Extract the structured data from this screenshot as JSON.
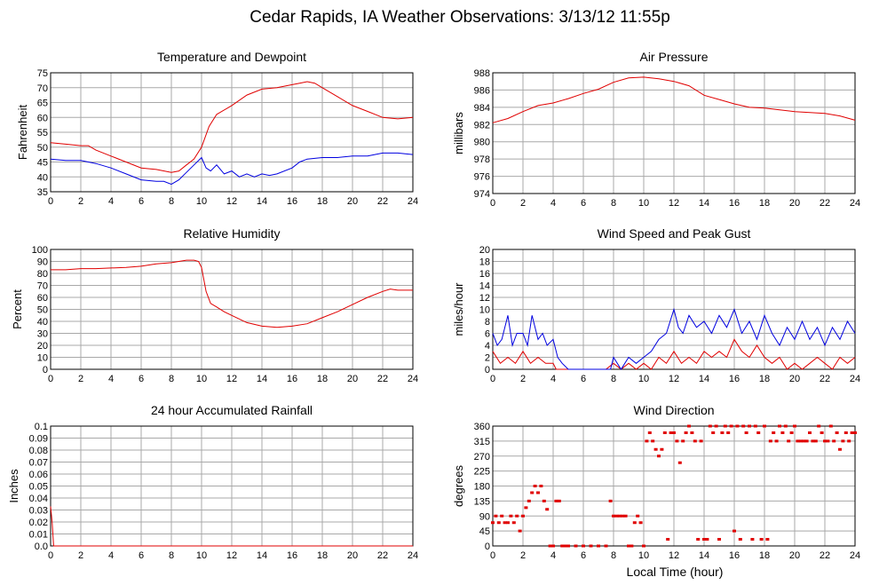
{
  "page_title": "Cedar Rapids, IA Weather Observations: 3/13/12 11:55p",
  "x_axis_label": "Local Time (hour)",
  "colors": {
    "red": "#e00000",
    "blue": "#0000e0",
    "grid": "#a8a8a8"
  },
  "chart_data": [
    {
      "id": "temp",
      "type": "line",
      "title": "Temperature and Dewpoint",
      "ylabel": "Fahrenheit",
      "xlim": [
        0,
        24
      ],
      "ylim": [
        35,
        75
      ],
      "xticks": [
        0,
        2,
        4,
        6,
        8,
        10,
        12,
        14,
        16,
        18,
        20,
        22,
        24
      ],
      "yticks": [
        35,
        40,
        45,
        50,
        55,
        60,
        65,
        70,
        75
      ],
      "grid": true,
      "series": [
        {
          "color": "red",
          "x": [
            0,
            1,
            2,
            2.5,
            3,
            4,
            5,
            6,
            7,
            8,
            8.5,
            9,
            9.5,
            10,
            10.5,
            11,
            12,
            13,
            14,
            15,
            16,
            16.5,
            17,
            17.5,
            18,
            19,
            20,
            21,
            22,
            23,
            24
          ],
          "y": [
            51.5,
            51,
            50.5,
            50.5,
            49,
            47,
            45,
            43,
            42.5,
            41.5,
            42,
            44,
            46,
            50,
            57,
            61,
            64,
            67.5,
            69.5,
            70,
            71,
            71.5,
            72,
            71.5,
            70,
            67,
            64,
            62,
            60,
            59.5,
            60
          ]
        },
        {
          "color": "blue",
          "x": [
            0,
            1,
            2,
            3,
            4,
            5,
            6,
            7,
            7.5,
            8,
            8.5,
            9,
            9.5,
            10,
            10.3,
            10.6,
            11,
            11.5,
            12,
            12.5,
            13,
            13.5,
            14,
            14.5,
            15,
            16,
            16.5,
            17,
            18,
            19,
            20,
            21,
            22,
            23,
            24
          ],
          "y": [
            46,
            45.5,
            45.5,
            44.5,
            43,
            41,
            39,
            38.5,
            38.5,
            37.5,
            39,
            41.5,
            44,
            46.5,
            43,
            42,
            44,
            41,
            42,
            40,
            41,
            40,
            41,
            40.5,
            41,
            43,
            45,
            46,
            46.5,
            46.5,
            47,
            47,
            48,
            48,
            47.5
          ]
        }
      ]
    },
    {
      "id": "pressure",
      "type": "line",
      "title": "Air Pressure",
      "ylabel": "millibars",
      "xlim": [
        0,
        24
      ],
      "ylim": [
        974,
        988
      ],
      "xticks": [
        0,
        2,
        4,
        6,
        8,
        10,
        12,
        14,
        16,
        18,
        20,
        22,
        24
      ],
      "yticks": [
        974,
        976,
        978,
        980,
        982,
        984,
        986,
        988
      ],
      "grid": true,
      "series": [
        {
          "color": "red",
          "x": [
            0,
            1,
            2,
            3,
            4,
            5,
            6,
            7,
            8,
            9,
            10,
            11,
            12,
            13,
            14,
            15,
            16,
            17,
            18,
            19,
            20,
            21,
            22,
            23,
            24
          ],
          "y": [
            982.2,
            982.7,
            983.5,
            984.2,
            984.5,
            985,
            985.6,
            986.1,
            986.9,
            987.4,
            987.5,
            987.3,
            987,
            986.5,
            985.4,
            984.9,
            984.4,
            984,
            983.9,
            983.7,
            983.5,
            983.4,
            983.3,
            983,
            982.5
          ]
        }
      ]
    },
    {
      "id": "humidity",
      "type": "line",
      "title": "Relative Humidity",
      "ylabel": "Percent",
      "xlim": [
        0,
        24
      ],
      "ylim": [
        0,
        100
      ],
      "xticks": [
        0,
        2,
        4,
        6,
        8,
        10,
        12,
        14,
        16,
        18,
        20,
        22,
        24
      ],
      "yticks": [
        0,
        10,
        20,
        30,
        40,
        50,
        60,
        70,
        80,
        90,
        100
      ],
      "grid": true,
      "series": [
        {
          "color": "red",
          "x": [
            0,
            1,
            2,
            3,
            4,
            5,
            6,
            7,
            8,
            8.5,
            9,
            9.5,
            9.8,
            10,
            10.3,
            10.6,
            11,
            11.5,
            12,
            13,
            14,
            15,
            16,
            17,
            18,
            19,
            20,
            21,
            22,
            22.5,
            23,
            24
          ],
          "y": [
            83,
            83,
            84,
            84,
            84.5,
            85,
            86,
            88,
            89,
            90,
            91,
            91,
            90,
            85,
            65,
            55,
            52,
            48,
            45,
            39,
            36,
            35,
            36,
            38,
            43,
            48,
            54,
            60,
            65,
            67,
            66,
            66
          ]
        }
      ]
    },
    {
      "id": "wind",
      "type": "line",
      "title": "Wind Speed and Peak Gust",
      "ylabel": "miles/hour",
      "xlim": [
        0,
        24
      ],
      "ylim": [
        0,
        20
      ],
      "xticks": [
        0,
        2,
        4,
        6,
        8,
        10,
        12,
        14,
        16,
        18,
        20,
        22,
        24
      ],
      "yticks": [
        0,
        2,
        4,
        6,
        8,
        10,
        12,
        14,
        16,
        18,
        20
      ],
      "grid": true,
      "series": [
        {
          "color": "red",
          "x": [
            0,
            0.5,
            1,
            1.5,
            2,
            2.5,
            3,
            3.5,
            4,
            4.2,
            4.5,
            5,
            6,
            7,
            7.5,
            8,
            8.5,
            9,
            9.5,
            10,
            10.5,
            11,
            11.5,
            12,
            12.5,
            13,
            13.5,
            14,
            14.5,
            15,
            15.5,
            16,
            16.5,
            17,
            17.5,
            18,
            18.5,
            19,
            19.5,
            20,
            20.5,
            21,
            21.5,
            22,
            22.5,
            23,
            23.5,
            24
          ],
          "y": [
            3,
            1,
            2,
            1,
            3,
            1,
            2,
            1,
            1,
            0,
            0,
            0,
            0,
            0,
            0,
            1,
            0,
            1,
            0,
            1,
            0,
            2,
            1,
            3,
            1,
            2,
            1,
            3,
            2,
            3,
            2,
            5,
            3,
            2,
            4,
            2,
            1,
            2,
            0,
            1,
            0,
            1,
            2,
            1,
            0,
            2,
            1,
            2
          ]
        },
        {
          "color": "blue",
          "x": [
            0,
            0.3,
            0.6,
            1,
            1.3,
            1.6,
            2,
            2.3,
            2.6,
            3,
            3.3,
            3.6,
            4,
            4.3,
            4.6,
            5,
            6,
            7,
            7.8,
            8,
            8.5,
            9,
            9.5,
            10,
            10.5,
            11,
            11.5,
            12,
            12.3,
            12.6,
            13,
            13.5,
            14,
            14.5,
            15,
            15.5,
            16,
            16.5,
            17,
            17.5,
            18,
            18.5,
            19,
            19.5,
            20,
            20.5,
            21,
            21.5,
            22,
            22.5,
            23,
            23.5,
            24
          ],
          "y": [
            6,
            4,
            5,
            9,
            4,
            6,
            6,
            4,
            9,
            5,
            6,
            4,
            5,
            2,
            1,
            0,
            0,
            0,
            0,
            2,
            0,
            2,
            1,
            2,
            3,
            5,
            6,
            10,
            7,
            6,
            9,
            7,
            8,
            6,
            9,
            7,
            10,
            6,
            8,
            5,
            9,
            6,
            4,
            7,
            5,
            8,
            5,
            7,
            4,
            7,
            5,
            8,
            6
          ]
        }
      ]
    },
    {
      "id": "rainfall",
      "type": "line",
      "title": "24 hour Accumulated Rainfall",
      "ylabel": "Inches",
      "xlim": [
        0,
        24
      ],
      "ylim": [
        0,
        0.1
      ],
      "xticks": [
        0,
        2,
        4,
        6,
        8,
        10,
        12,
        14,
        16,
        18,
        20,
        22,
        24
      ],
      "yticks": [
        "0.0",
        "0.01",
        "0.02",
        "0.03",
        "0.04",
        "0.05",
        "0.06",
        "0.07",
        "0.08",
        "0.09",
        "0.1"
      ],
      "grid": true,
      "series": [
        {
          "color": "red",
          "x": [
            0,
            0.1,
            0.2,
            24
          ],
          "y": [
            0.033,
            0.02,
            0,
            0
          ]
        }
      ]
    },
    {
      "id": "direction",
      "type": "scatter",
      "title": "Wind Direction",
      "ylabel": "degrees",
      "xlabel": "Local Time (hour)",
      "xlim": [
        0,
        24
      ],
      "ylim": [
        0,
        360
      ],
      "xticks": [
        0,
        2,
        4,
        6,
        8,
        10,
        12,
        14,
        16,
        18,
        20,
        22,
        24
      ],
      "yticks": [
        0,
        45,
        90,
        135,
        180,
        225,
        270,
        315,
        360
      ],
      "grid": true,
      "series": [
        {
          "color": "red",
          "x": [
            0,
            0.2,
            0.4,
            0.6,
            0.8,
            1,
            1.2,
            1.4,
            1.6,
            1.8,
            2,
            2.2,
            2.4,
            2.6,
            2.8,
            3,
            3.2,
            3.4,
            3.6,
            3.8,
            4,
            4.2,
            4.4,
            4.6,
            4.8,
            5,
            5.5,
            6,
            6.5,
            7,
            7.5,
            7.8,
            8,
            8.2,
            8.4,
            8.6,
            8.8,
            9,
            9.2,
            9.4,
            9.6,
            9.8,
            10,
            10.2,
            10.4,
            10.6,
            10.8,
            11,
            11.2,
            11.4,
            11.6,
            11.8,
            12,
            12.2,
            12.4,
            12.6,
            12.8,
            13,
            13.2,
            13.4,
            13.6,
            13.8,
            14,
            14.2,
            14.4,
            14.6,
            14.8,
            15,
            15.2,
            15.4,
            15.6,
            15.8,
            16,
            16.2,
            16.4,
            16.6,
            16.8,
            17,
            17.2,
            17.4,
            17.6,
            17.8,
            18,
            18.2,
            18.4,
            18.6,
            18.8,
            19,
            19.2,
            19.4,
            19.6,
            19.8,
            20,
            20.2,
            20.4,
            20.6,
            20.8,
            21,
            21.2,
            21.4,
            21.6,
            21.8,
            22,
            22.2,
            22.4,
            22.6,
            22.8,
            23,
            23.2,
            23.4,
            23.6,
            23.8,
            24
          ],
          "y": [
            70,
            90,
            70,
            90,
            70,
            70,
            90,
            70,
            90,
            45,
            90,
            115,
            135,
            160,
            180,
            160,
            180,
            135,
            110,
            0,
            0,
            135,
            135,
            0,
            0,
            0,
            0,
            0,
            0,
            0,
            0,
            135,
            90,
            90,
            90,
            90,
            90,
            0,
            0,
            70,
            90,
            70,
            0,
            315,
            340,
            315,
            290,
            270,
            290,
            340,
            20,
            340,
            340,
            315,
            250,
            315,
            340,
            360,
            340,
            315,
            20,
            315,
            20,
            20,
            360,
            340,
            360,
            20,
            340,
            360,
            340,
            360,
            45,
            360,
            20,
            360,
            340,
            360,
            20,
            360,
            340,
            20,
            360,
            20,
            315,
            340,
            315,
            360,
            340,
            360,
            315,
            340,
            360,
            315,
            315,
            315,
            315,
            340,
            315,
            315,
            360,
            340,
            315,
            315,
            360,
            315,
            340,
            290,
            315,
            340,
            315,
            340,
            340
          ]
        }
      ]
    }
  ]
}
